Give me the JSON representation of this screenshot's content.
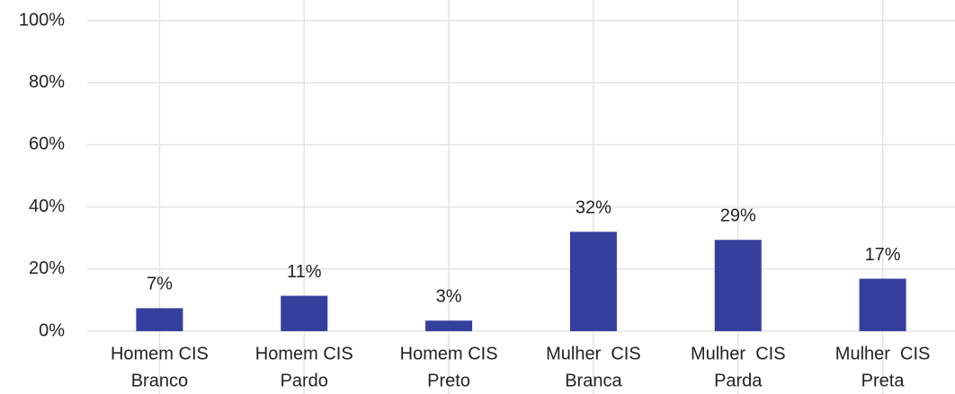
{
  "chart_data": {
    "type": "bar",
    "categories": [
      [
        "Homem CIS",
        "Branco"
      ],
      [
        "Homem CIS",
        "Pardo"
      ],
      [
        "Homem CIS",
        "Preto"
      ],
      [
        "Mulher  CIS",
        "Branca"
      ],
      [
        "Mulher  CIS",
        "Parda"
      ],
      [
        "Mulher  CIS",
        "Preta"
      ]
    ],
    "values": [
      7.4,
      11.4,
      3.4,
      32,
      29.4,
      16.9
    ],
    "value_labels": [
      "7%",
      "11%",
      "3%",
      "32%",
      "29%",
      "17%"
    ],
    "color": "#343f9e",
    "ylim": [
      0,
      100
    ],
    "yticks": [
      {
        "value": 0,
        "label": "0%"
      },
      {
        "value": 20,
        "label": "20%"
      },
      {
        "value": 40,
        "label": "40%"
      },
      {
        "value": 60,
        "label": "60%"
      },
      {
        "value": 80,
        "label": "80%"
      },
      {
        "value": 100,
        "label": "100%"
      }
    ],
    "grid": true
  }
}
